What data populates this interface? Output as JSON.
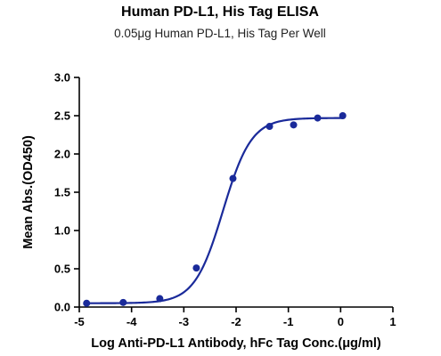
{
  "chart_data": {
    "type": "scatter",
    "title": "Human PD-L1, His Tag ELISA",
    "subtitle": "0.05μg Human PD-L1, His Tag Per Well",
    "xlabel": "Log Anti-PD-L1 Antibody, hFc Tag Conc.(μg/ml)",
    "ylabel": "Mean Abs.(OD450)",
    "xlim": [
      -5,
      1
    ],
    "ylim": [
      0,
      3.0
    ],
    "xticks": [
      -5,
      -4,
      -3,
      -2,
      -1,
      0,
      1
    ],
    "yticks": [
      0.0,
      0.5,
      1.0,
      1.5,
      2.0,
      2.5,
      3.0
    ],
    "xtick_labels": [
      "-5",
      "-4",
      "-3",
      "-2",
      "-1",
      "0",
      "1"
    ],
    "ytick_labels": [
      "0.0",
      "0.5",
      "1.0",
      "1.5",
      "2.0",
      "2.5",
      "3.0"
    ],
    "series": [
      {
        "color": "#1a2a9a",
        "points": [
          {
            "x": -4.86,
            "y": 0.05
          },
          {
            "x": -4.16,
            "y": 0.06
          },
          {
            "x": -3.46,
            "y": 0.11
          },
          {
            "x": -2.76,
            "y": 0.51
          },
          {
            "x": -2.06,
            "y": 1.68
          },
          {
            "x": -1.36,
            "y": 2.36
          },
          {
            "x": -0.9,
            "y": 2.38
          },
          {
            "x": -0.44,
            "y": 2.47
          },
          {
            "x": 0.04,
            "y": 2.5
          }
        ],
        "fit": {
          "model": "4PL",
          "bottom": 0.05,
          "top": 2.47,
          "logEC50": -2.25,
          "hill": 1.6
        }
      }
    ],
    "grid": false,
    "legend": "none"
  }
}
